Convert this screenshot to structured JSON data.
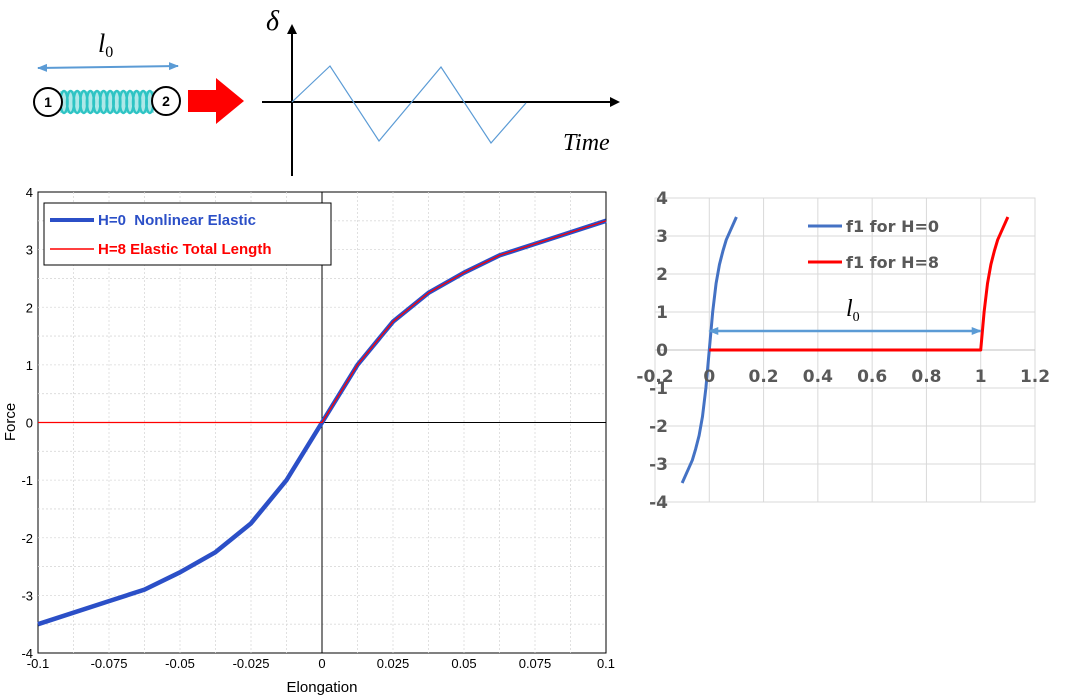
{
  "schematic": {
    "spring_length_label": "l",
    "spring_length_sub": "0",
    "node1_label": "1",
    "node2_label": "2",
    "colors": {
      "spring": "#2ec4c4",
      "arrow": "#ff0000",
      "dimension": "#5b9bd5"
    }
  },
  "signal_plot": {
    "y_label": "δ",
    "x_label": "Time",
    "wave_color": "#5b9bd5"
  },
  "chart_data": [
    {
      "type": "line",
      "xlabel": "Elongation",
      "ylabel": "Force",
      "xlim": [
        -0.1,
        0.1
      ],
      "ylim": [
        -4,
        4
      ],
      "x_ticks": [
        "-0.1",
        "-0.075",
        "-0.05",
        "-0.025",
        "0",
        "0.025",
        "0.05",
        "0.075",
        "0.1"
      ],
      "y_ticks": [
        "4",
        "3",
        "2",
        "1",
        "0",
        "-1",
        "-2",
        "-3",
        "-4"
      ],
      "grid": true,
      "legend_position": "top-left",
      "series": [
        {
          "name": "H=0  Nonlinear Elastic",
          "color": "#2b4fc7",
          "x": [
            -0.1,
            -0.075,
            -0.0625,
            -0.05,
            -0.0375,
            -0.025,
            -0.0125,
            0,
            0.0125,
            0.025,
            0.0375,
            0.05,
            0.0625,
            0.075,
            0.1
          ],
          "y": [
            -3.5,
            -3.1,
            -2.9,
            -2.6,
            -2.25,
            -1.75,
            -1.0,
            0,
            1.0,
            1.75,
            2.25,
            2.6,
            2.9,
            3.1,
            3.5
          ]
        },
        {
          "name": "H=8 Elastic Total Length",
          "color": "#ff0000",
          "x": [
            -0.1,
            0,
            0.0125,
            0.025,
            0.0375,
            0.05,
            0.0625,
            0.075,
            0.1
          ],
          "y": [
            0,
            0,
            1.0,
            1.75,
            2.25,
            2.6,
            2.9,
            3.1,
            3.5
          ]
        }
      ]
    },
    {
      "type": "line",
      "xlim": [
        -0.2,
        1.2
      ],
      "ylim": [
        -4,
        4
      ],
      "x_ticks": [
        "-0.2",
        "0",
        "0.2",
        "0.4",
        "0.6",
        "0.8",
        "1",
        "1.2"
      ],
      "y_ticks": [
        "4",
        "3",
        "2",
        "1",
        "0",
        "-1",
        "-2",
        "-3",
        "-4"
      ],
      "grid": true,
      "legend_position": "top-center",
      "annotation": {
        "text": "l",
        "sub": "0",
        "from_x": 0,
        "to_x": 1,
        "at_y": 0.5
      },
      "series": [
        {
          "name": "f1 for H=0",
          "color": "#4472c4",
          "x": [
            -0.1,
            -0.075,
            -0.0625,
            -0.05,
            -0.0375,
            -0.025,
            -0.0125,
            0,
            0.0125,
            0.025,
            0.0375,
            0.05,
            0.0625,
            0.075,
            0.1
          ],
          "y": [
            -3.5,
            -3.1,
            -2.9,
            -2.6,
            -2.25,
            -1.75,
            -1.0,
            0,
            1.0,
            1.75,
            2.25,
            2.6,
            2.9,
            3.1,
            3.5
          ]
        },
        {
          "name": "f1 for H=8",
          "color": "#ff0000",
          "x": [
            0,
            1.0,
            1.0125,
            1.025,
            1.0375,
            1.05,
            1.0625,
            1.075,
            1.1
          ],
          "y": [
            0,
            0,
            1.0,
            1.75,
            2.25,
            2.6,
            2.9,
            3.1,
            3.5
          ]
        }
      ]
    }
  ]
}
